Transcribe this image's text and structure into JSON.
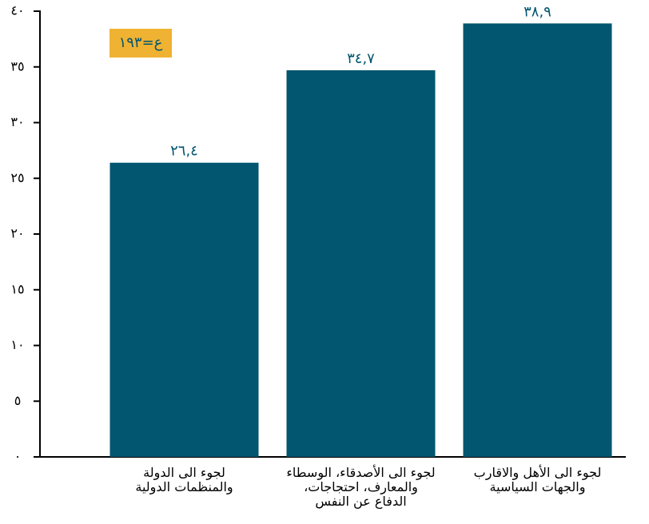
{
  "chart_data": {
    "type": "bar",
    "categories": [
      "لجوء الى الدولة\nوالمنظمات الدولية",
      "لجوء الى الأصدقاء، الوسطاء\nوالمعارف، احتجاجات،\nالدفاع عن النفس",
      "لجوء الى  الأهل والاقارب\nوالجهات السياسية"
    ],
    "values": [
      26.4,
      34.7,
      38.9
    ],
    "value_labels": [
      "٢٦,٤",
      "٣٤,٧",
      "٣٨,٩"
    ],
    "color": "#02566f",
    "annotations": [
      "ع=١٩٣"
    ],
    "ylim": [
      0,
      40
    ],
    "yticks": [
      {
        "value": 0,
        "label": "٠"
      },
      {
        "value": 5,
        "label": "٥"
      },
      {
        "value": 10,
        "label": "١٠"
      },
      {
        "value": 15,
        "label": "١٥"
      },
      {
        "value": 20,
        "label": "٢٠"
      },
      {
        "value": 25,
        "label": "٢٥"
      },
      {
        "value": 30,
        "label": "٣٠"
      },
      {
        "value": 35,
        "label": "٣٥"
      },
      {
        "value": 40,
        "label": "٤٠"
      }
    ],
    "grid": false
  }
}
